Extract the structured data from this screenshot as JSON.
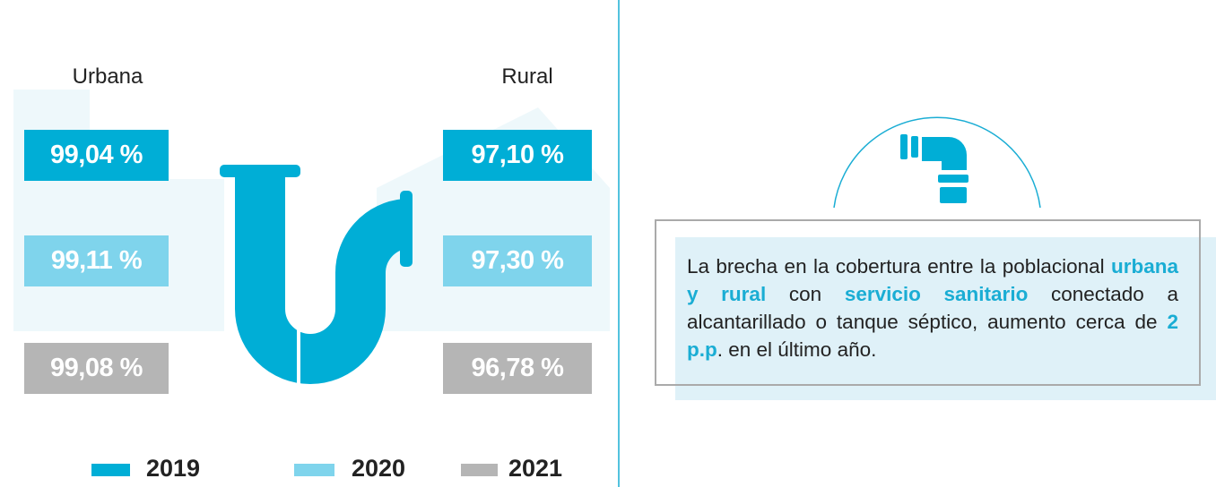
{
  "groups": [
    {
      "label": "Urbana",
      "values": [
        "99,04 %",
        "99,11 %",
        "99,08 %"
      ]
    },
    {
      "label": "Rural",
      "values": [
        "97,10 %",
        "97,30 %",
        "96,78 %"
      ]
    }
  ],
  "legend": [
    {
      "label": "2019",
      "color": "#00aed6"
    },
    {
      "label": "2020",
      "color": "#7fd4ec"
    },
    {
      "label": "2021",
      "color": "#b5b5b5"
    }
  ],
  "note": {
    "segments": [
      {
        "text": "La brecha en la cobertura entre la poblacional ",
        "emphasis": false
      },
      {
        "text": "urbana y rural",
        "emphasis": true
      },
      {
        "text": " con ",
        "emphasis": false
      },
      {
        "text": "servicio sanitario",
        "emphasis": true
      },
      {
        "text": " conectado a alcantarillado o tanque séptico, aumento cerca de ",
        "emphasis": false
      },
      {
        "text": "2 p.p",
        "emphasis": true
      },
      {
        "text": ". en el último año.",
        "emphasis": false
      }
    ]
  }
}
